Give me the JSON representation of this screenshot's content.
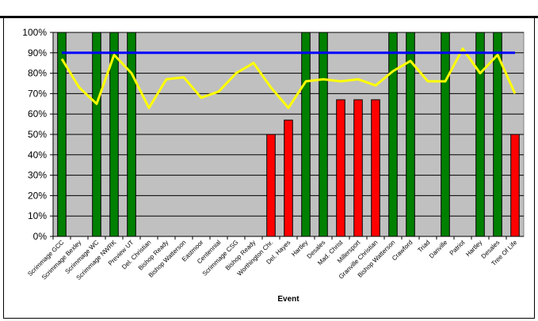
{
  "chart_data": {
    "type": "bar",
    "xlabel": "Event",
    "ylabel": "",
    "ylim": [
      0,
      100
    ],
    "y_ticks": [
      "0%",
      "10%",
      "20%",
      "30%",
      "40%",
      "50%",
      "60%",
      "70%",
      "80%",
      "90%",
      "100%"
    ],
    "categories": [
      "Scrimmage GCC",
      "Scrimmage Bexley",
      "Scrimmage WC",
      "Scrimmage NWRK",
      "Preview UT",
      "Del. Christian",
      "Bishop Ready",
      "Bishop Watterson",
      "Eastmoor",
      "Centennial",
      "Scrimmage CSG",
      "Bishop Ready",
      "Worthington Chr.",
      "Del. Hayes",
      "Hartley",
      "Desales",
      "Mad. Christ",
      "Millersport",
      "Granville Christian",
      "Bishop Watterson",
      "Crawford",
      "Triad",
      "Danville",
      "Patriot",
      "Hartley",
      "Desales",
      "Tree Of Life"
    ],
    "series": [
      {
        "kind": "bar",
        "color": "#008000",
        "values": [
          100,
          0,
          100,
          100,
          100,
          0,
          0,
          0,
          0,
          0,
          0,
          0,
          0,
          0,
          100,
          100,
          0,
          0,
          0,
          100,
          100,
          0,
          100,
          0,
          100,
          100,
          0
        ]
      },
      {
        "kind": "bar",
        "color": "#ff0000",
        "values": [
          0,
          0,
          0,
          0,
          0,
          0,
          0,
          0,
          0,
          0,
          0,
          0,
          50,
          57,
          0,
          0,
          67,
          67,
          67,
          0,
          0,
          0,
          0,
          0,
          0,
          0,
          50
        ]
      },
      {
        "kind": "line",
        "color": "#ffff00",
        "values": [
          87,
          73,
          65,
          89,
          80,
          63,
          77,
          78,
          68,
          71,
          80,
          85,
          73,
          63,
          76,
          77,
          76,
          77,
          74,
          81,
          86,
          76,
          76,
          92,
          80,
          89,
          70
        ]
      },
      {
        "kind": "line",
        "color": "#0000ff",
        "values": [
          90,
          90,
          90,
          90,
          90,
          90,
          90,
          90,
          90,
          90,
          90,
          90,
          90,
          90,
          90,
          90,
          90,
          90,
          90,
          90,
          90,
          90,
          90,
          90,
          90,
          90,
          90
        ]
      }
    ],
    "grid": true,
    "legend": "none",
    "plot_background": "#c0c0c0"
  }
}
